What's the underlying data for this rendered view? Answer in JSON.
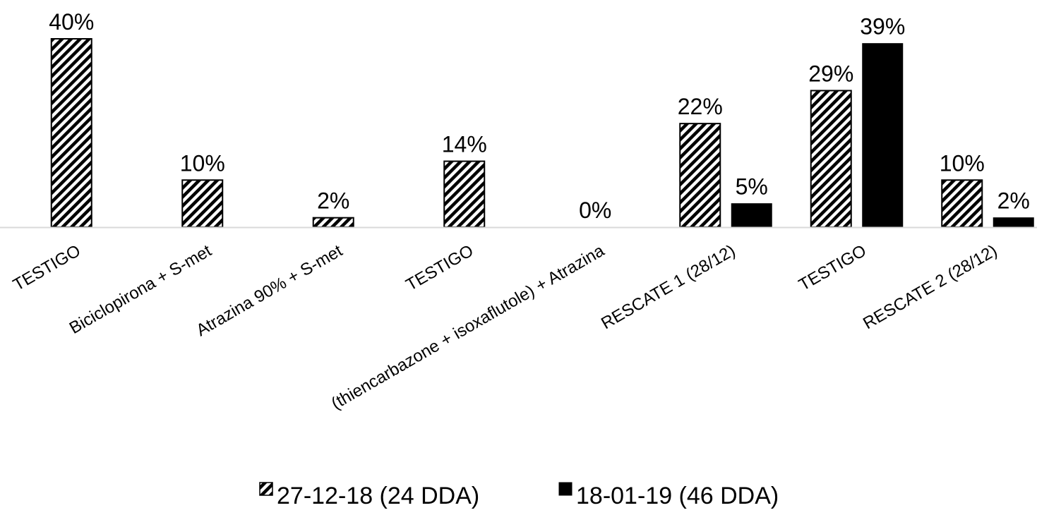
{
  "chart_data": {
    "type": "bar",
    "title": "",
    "xlabel": "",
    "ylabel": "",
    "ylim": [
      0,
      40
    ],
    "grid": false,
    "legend_position": "bottom",
    "value_format": "percent",
    "categories": [
      "TESTIGO",
      "Biciclopirona + S-met",
      "Atrazina 90% + S-met",
      "TESTIGO",
      "(thiencarbazone + isoxaflutole) + Atrazina",
      "RESCATE 1 (28/12)",
      "TESTIGO",
      "RESCATE 2 (28/12)"
    ],
    "series": [
      {
        "name": "27-12-18 (24 DDA)",
        "fill": "hatched",
        "color": "#000000",
        "values": [
          40,
          10,
          2,
          14,
          0,
          22,
          29,
          10
        ],
        "labels": [
          "40%",
          "10%",
          "2%",
          "14%",
          "0%",
          "22%",
          "29%",
          "10%"
        ]
      },
      {
        "name": "18-01-19 (46 DDA)",
        "fill": "solid",
        "color": "#000000",
        "values": [
          null,
          null,
          null,
          null,
          null,
          5,
          39,
          2
        ],
        "labels": [
          null,
          null,
          null,
          null,
          null,
          "5%",
          "39%",
          "2%"
        ]
      }
    ]
  }
}
